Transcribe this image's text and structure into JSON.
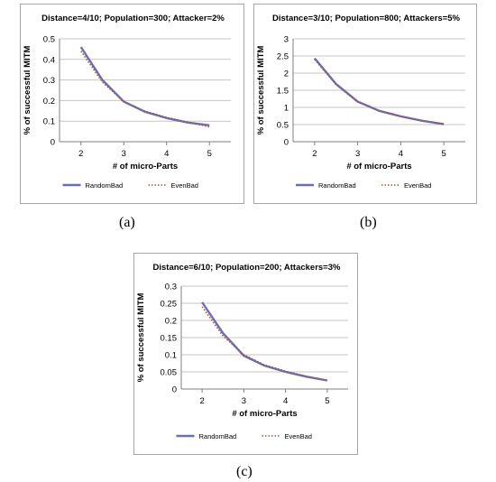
{
  "captions": [
    "(a)",
    "(b)",
    "(c)"
  ],
  "chart_data": [
    {
      "type": "line",
      "title": "Distance=4/10; Population=300; Attacker=2%",
      "xlabel": "# of micro-Parts",
      "ylabel": "% of successful  MITM",
      "x": [
        2,
        2.5,
        3,
        3.5,
        4,
        4.5,
        5
      ],
      "xticks": [
        2,
        3,
        4,
        5
      ],
      "xlim": [
        1.5,
        5.5
      ],
      "ylim": [
        0,
        0.5
      ],
      "yticks": [
        0,
        0.1,
        0.2,
        0.3,
        0.4,
        0.5
      ],
      "ytick_labels": [
        "0",
        "0.1",
        "0.2",
        "0.3",
        "0.4",
        "0.5"
      ],
      "grid": "horizontal",
      "legend_position": "bottom",
      "series": [
        {
          "name": "RandomBad",
          "style": "solid",
          "color": "#6a6fb3",
          "values": [
            0.46,
            0.3,
            0.195,
            0.145,
            0.115,
            0.093,
            0.08
          ]
        },
        {
          "name": "EvenBad",
          "style": "dotted",
          "color": "#9c5a4c",
          "values": [
            0.44,
            0.29,
            0.195,
            0.148,
            0.118,
            0.095,
            0.072
          ]
        }
      ]
    },
    {
      "type": "line",
      "title": "Distance=3/10; Population=800; Attackers=5%",
      "xlabel": "# of micro-Parts",
      "ylabel": "% of successful  MITM",
      "x": [
        2,
        2.5,
        3,
        3.5,
        4,
        4.5,
        5
      ],
      "xticks": [
        2,
        3,
        4,
        5
      ],
      "xlim": [
        1.5,
        5.5
      ],
      "ylim": [
        0,
        3
      ],
      "yticks": [
        0,
        0.5,
        1,
        1.5,
        2,
        2.5,
        3
      ],
      "ytick_labels": [
        "0",
        "0.5",
        "1",
        "1.5",
        "2",
        "2.5",
        "3"
      ],
      "grid": "horizontal",
      "legend_position": "bottom",
      "series": [
        {
          "name": "RandomBad",
          "style": "solid",
          "color": "#6a6fb3",
          "values": [
            2.43,
            1.68,
            1.17,
            0.9,
            0.74,
            0.61,
            0.51
          ]
        },
        {
          "name": "EvenBad",
          "style": "dotted",
          "color": "#9c5a4c",
          "values": [
            2.4,
            1.66,
            1.16,
            0.9,
            0.74,
            0.61,
            0.52
          ]
        }
      ]
    },
    {
      "type": "line",
      "title": "Distance=6/10; Population=200; Attackers=3%",
      "xlabel": "# of micro-Parts",
      "ylabel": "% of successful  MITM",
      "x": [
        2,
        2.5,
        3,
        3.5,
        4,
        4.5,
        5
      ],
      "xticks": [
        2,
        3,
        4,
        5
      ],
      "xlim": [
        1.5,
        5.5
      ],
      "ylim": [
        0,
        0.3
      ],
      "yticks": [
        0,
        0.05,
        0.1,
        0.15,
        0.2,
        0.25,
        0.3
      ],
      "ytick_labels": [
        "0",
        "0.05",
        "0.1",
        "0.15",
        "0.2",
        "0.25",
        "0.3"
      ],
      "grid": "horizontal",
      "legend_position": "bottom",
      "series": [
        {
          "name": "RandomBad",
          "style": "solid",
          "color": "#6a6fb3",
          "values": [
            0.253,
            0.163,
            0.097,
            0.068,
            0.05,
            0.036,
            0.025
          ]
        },
        {
          "name": "EvenBad",
          "style": "dotted",
          "color": "#9c5a4c",
          "values": [
            0.24,
            0.155,
            0.1,
            0.07,
            0.052,
            0.037,
            0.025
          ]
        }
      ]
    }
  ]
}
